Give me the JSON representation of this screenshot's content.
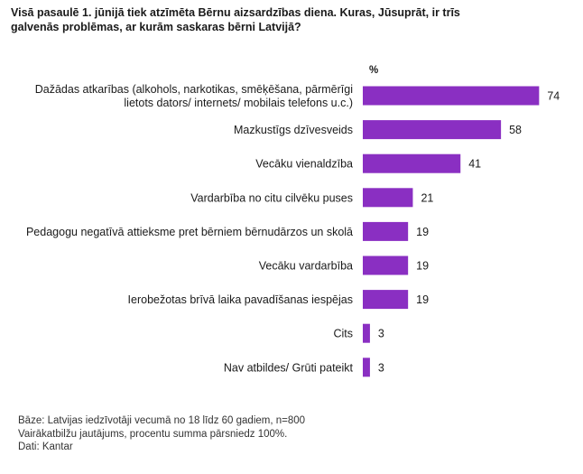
{
  "title": "Visā pasaulē 1. jūnijā tiek atzīmēta Bērnu aizsardzības diena. Kuras, Jūsuprāt, ir trīs galvenās problēmas, ar kurām saskaras bērni Latvijā?",
  "unit": "%",
  "colors": {
    "bar": "#8a2fc2",
    "label": "#1a1a1a"
  },
  "chart_data": {
    "type": "bar",
    "orientation": "horizontal",
    "categories": [
      [
        "Dažādas atkarības (alkohols, narkotikas, smēķēšana, pārmērīgi",
        "lietots dators/ internets/ mobilais telefons u.c.)"
      ],
      [
        "Mazkustīgs dzīvesveids"
      ],
      [
        "Vecāku vienaldzība"
      ],
      [
        "Vardarbība no citu cilvēku puses"
      ],
      [
        "Pedagogu negatīvā attieksme pret bērniem bērnudārzos un skolā"
      ],
      [
        "Vecāku vardarbība"
      ],
      [
        "Ierobežotas brīvā laika pavadīšanas iespējas"
      ],
      [
        "Cits"
      ],
      [
        "Nav atbildes/ Grūti pateikt"
      ]
    ],
    "values": [
      74,
      58,
      41,
      21,
      19,
      19,
      19,
      3,
      3
    ]
  },
  "notes": [
    "Bāze: Latvijas iedzīvotāji vecumā no 18 līdz 60 gadiem, n=800",
    "Vairākatbilžu jautājums, procentu summa pārsniedz 100%.",
    "Dati: Kantar"
  ]
}
